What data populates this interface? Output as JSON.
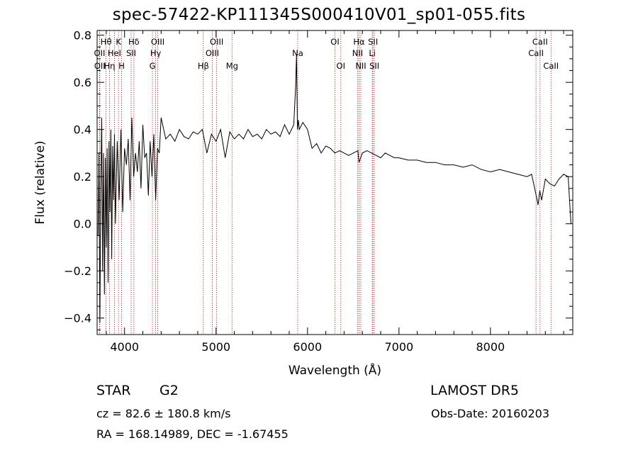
{
  "header": {
    "title": "spec-57422-KP111345S000410V01_sp01-055.fits"
  },
  "info": {
    "object_class": "STAR",
    "subclass": "G2",
    "survey": "LAMOST DR5",
    "redshift": "cz = 82.6 ± 180.8 km/s",
    "obs_date": "Obs-Date: 20160203",
    "coords": "RA = 168.14989, DEC =  -1.67455"
  },
  "chart_data": {
    "type": "line",
    "xlabel": "Wavelength (Å)",
    "ylabel": "Flux (relative)",
    "xlim": [
      3700,
      8900
    ],
    "ylim": [
      -0.47,
      0.82
    ],
    "x_ticks": [
      4000,
      5000,
      6000,
      7000,
      8000
    ],
    "y_ticks": [
      -0.4,
      -0.2,
      0.0,
      0.2,
      0.4,
      0.6,
      0.8
    ],
    "x_tick_labels": [
      "4000",
      "5000",
      "6000",
      "7000",
      "8000"
    ],
    "y_tick_labels": [
      "−0.4",
      "−0.2",
      "0.0",
      "0.2",
      "0.4",
      "0.6",
      "0.8"
    ],
    "grid": false,
    "line_color": "#000000",
    "marker_color": "#b01010",
    "series": [
      {
        "x": [
          3710,
          3720,
          3730,
          3740,
          3750,
          3760,
          3770,
          3780,
          3790,
          3800,
          3810,
          3820,
          3830,
          3840,
          3850,
          3860,
          3870,
          3880,
          3890,
          3900,
          3920,
          3940,
          3960,
          3980,
          4000,
          4020,
          4040,
          4060,
          4080,
          4100,
          4120,
          4140,
          4160,
          4180,
          4200,
          4220,
          4240,
          4260,
          4280,
          4300,
          4320,
          4340,
          4360,
          4380,
          4400,
          4450,
          4500,
          4550,
          4600,
          4650,
          4700,
          4750,
          4800,
          4850,
          4900,
          4950,
          5000,
          5050,
          5100,
          5150,
          5200,
          5250,
          5300,
          5350,
          5400,
          5450,
          5500,
          5550,
          5600,
          5650,
          5700,
          5750,
          5800,
          5850,
          5870,
          5880,
          5890,
          5900,
          5910,
          5950,
          6000,
          6050,
          6100,
          6150,
          6200,
          6250,
          6300,
          6350,
          6400,
          6450,
          6500,
          6550,
          6563,
          6600,
          6650,
          6700,
          6750,
          6800,
          6850,
          6900,
          6950,
          7000,
          7100,
          7200,
          7300,
          7400,
          7500,
          7600,
          7700,
          7800,
          7900,
          8000,
          8100,
          8200,
          8300,
          8400,
          8450,
          8500,
          8520,
          8540,
          8560,
          8600,
          8650,
          8700,
          8750,
          8800,
          8850,
          8880
        ],
        "y": [
          -0.05,
          0.3,
          -0.42,
          0.15,
          0.45,
          -0.2,
          0.3,
          -0.3,
          0.28,
          -0.1,
          0.32,
          -0.25,
          0.35,
          0.05,
          0.4,
          -0.15,
          0.33,
          0.1,
          0.38,
          0.0,
          0.35,
          0.1,
          0.4,
          0.05,
          0.32,
          0.25,
          0.36,
          0.1,
          0.45,
          0.2,
          0.3,
          0.22,
          0.35,
          0.15,
          0.42,
          0.28,
          0.3,
          0.12,
          0.35,
          0.2,
          0.38,
          0.1,
          0.32,
          0.3,
          0.45,
          0.36,
          0.38,
          0.35,
          0.4,
          0.37,
          0.36,
          0.39,
          0.38,
          0.4,
          0.3,
          0.38,
          0.35,
          0.4,
          0.28,
          0.39,
          0.36,
          0.38,
          0.36,
          0.4,
          0.37,
          0.38,
          0.36,
          0.4,
          0.38,
          0.39,
          0.37,
          0.42,
          0.38,
          0.42,
          0.58,
          0.72,
          0.4,
          0.44,
          0.4,
          0.43,
          0.4,
          0.32,
          0.34,
          0.3,
          0.33,
          0.32,
          0.3,
          0.31,
          0.3,
          0.29,
          0.3,
          0.31,
          0.26,
          0.3,
          0.31,
          0.3,
          0.29,
          0.28,
          0.3,
          0.29,
          0.28,
          0.28,
          0.27,
          0.27,
          0.26,
          0.26,
          0.25,
          0.25,
          0.24,
          0.25,
          0.23,
          0.22,
          0.23,
          0.22,
          0.21,
          0.2,
          0.21,
          0.12,
          0.08,
          0.14,
          0.1,
          0.19,
          0.17,
          0.16,
          0.19,
          0.21,
          0.2,
          0.0
        ]
      }
    ],
    "line_markers": [
      {
        "label": "Hθ",
        "x": 3798,
        "row": 0
      },
      {
        "label": "K",
        "x": 3934,
        "row": 0
      },
      {
        "label": "Hδ",
        "x": 4102,
        "row": 0
      },
      {
        "label": "OIII",
        "x": 4363,
        "row": 0
      },
      {
        "label": "OIII",
        "x": 5007,
        "row": 0
      },
      {
        "label": "OI",
        "x": 6300,
        "row": 0
      },
      {
        "label": "Hα",
        "x": 6563,
        "row": 0
      },
      {
        "label": "SII",
        "x": 6716,
        "row": 0
      },
      {
        "label": "CaII",
        "x": 8542,
        "row": 0
      },
      {
        "label": "OII",
        "x": 3727,
        "row": 1
      },
      {
        "label": "HeI",
        "x": 3889,
        "row": 1
      },
      {
        "label": "SII",
        "x": 4072,
        "row": 1
      },
      {
        "label": "Hγ",
        "x": 4340,
        "row": 1
      },
      {
        "label": "OIII",
        "x": 4959,
        "row": 1
      },
      {
        "label": "NII",
        "x": 6548,
        "row": 1
      },
      {
        "label": "Li",
        "x": 6708,
        "row": 1
      },
      {
        "label": "CaII",
        "x": 8498,
        "row": 1
      },
      {
        "label": "OII",
        "x": 3729,
        "row": 2
      },
      {
        "label": "Hη",
        "x": 3835,
        "row": 2
      },
      {
        "label": "H",
        "x": 3968,
        "row": 2
      },
      {
        "label": "G",
        "x": 4305,
        "row": 2
      },
      {
        "label": "Hβ",
        "x": 4861,
        "row": 2
      },
      {
        "label": "Mg",
        "x": 5175,
        "row": 2
      },
      {
        "label": "Na",
        "x": 5893,
        "row": 3
      },
      {
        "label": "OI",
        "x": 6364,
        "row": 2
      },
      {
        "label": "NII",
        "x": 6583,
        "row": 2
      },
      {
        "label": "SII",
        "x": 6731,
        "row": 2
      },
      {
        "label": "CaII",
        "x": 8662,
        "row": 2
      }
    ]
  }
}
